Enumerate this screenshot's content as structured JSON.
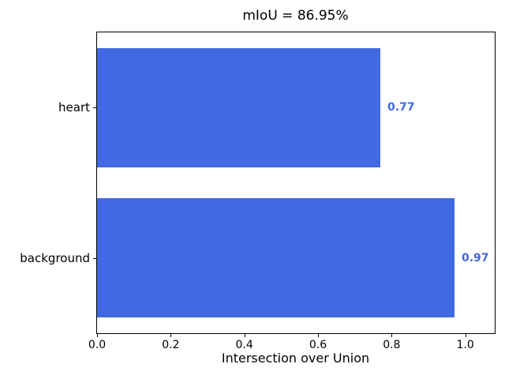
{
  "chart_data": {
    "type": "bar",
    "orientation": "horizontal",
    "title": "mIoU = 86.95%",
    "xlabel": "Intersection over Union",
    "ylabel": "",
    "categories": [
      "heart",
      "background"
    ],
    "values": [
      0.77,
      0.97
    ],
    "value_labels": [
      "0.77",
      "0.97"
    ],
    "xlim": [
      0,
      1.08
    ],
    "xticks": [
      0.0,
      0.2,
      0.4,
      0.6,
      0.8,
      1.0
    ],
    "xtick_labels": [
      "0.0",
      "0.2",
      "0.4",
      "0.6",
      "0.8",
      "1.0"
    ],
    "bar_color": "#4169e1",
    "value_label_color": "#4169e1",
    "frame_color": "#000000",
    "background_color": "#ffffff",
    "grid": false,
    "legend": null
  }
}
